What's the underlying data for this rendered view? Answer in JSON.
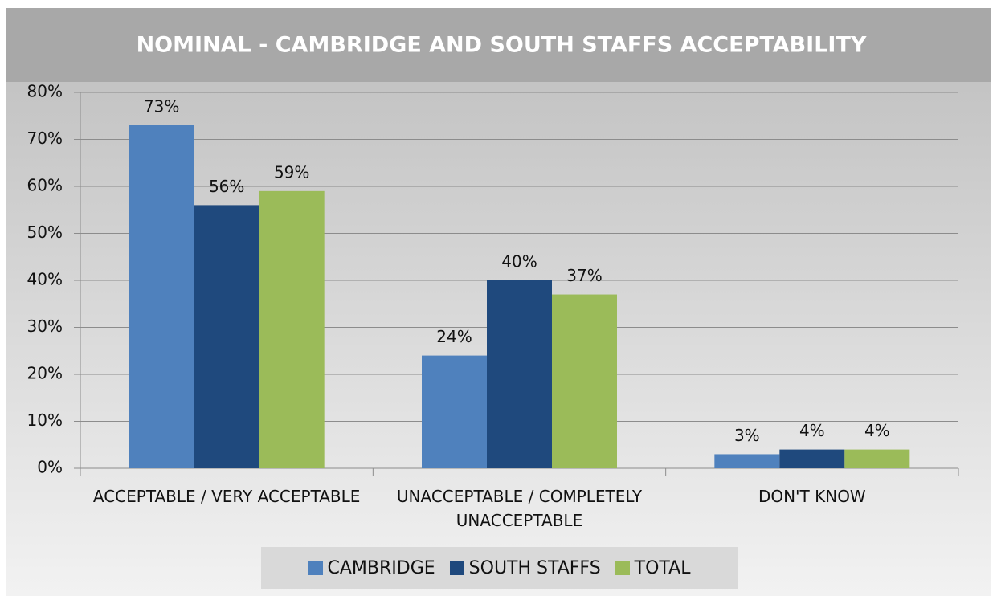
{
  "chart_data": {
    "type": "bar",
    "title": "NOMINAL - CAMBRIDGE AND SOUTH STAFFS ACCEPTABILITY",
    "categories": [
      "ACCEPTABLE / VERY ACCEPTABLE",
      "UNACCEPTABLE / COMPLETELY UNACCEPTABLE",
      "DON'T KNOW"
    ],
    "series": [
      {
        "name": "CAMBRIDGE",
        "color": "#4f81bd",
        "values": [
          73,
          24,
          3
        ],
        "value_labels": [
          "73%",
          "24%",
          "3%"
        ]
      },
      {
        "name": "SOUTH STAFFS",
        "color": "#1f497d",
        "values": [
          56,
          40,
          4
        ],
        "value_labels": [
          "56%",
          "40%",
          "4%"
        ]
      },
      {
        "name": "TOTAL",
        "color": "#9bbb59",
        "values": [
          59,
          37,
          4
        ],
        "value_labels": [
          "59%",
          "37%",
          "4%"
        ]
      }
    ],
    "ylim": [
      0,
      80
    ],
    "yticks": [
      {
        "value": 0,
        "label": "0%"
      },
      {
        "value": 10,
        "label": "10%"
      },
      {
        "value": 20,
        "label": "20%"
      },
      {
        "value": 30,
        "label": "30%"
      },
      {
        "value": 40,
        "label": "40%"
      },
      {
        "value": 50,
        "label": "50%"
      },
      {
        "value": 60,
        "label": "60%"
      },
      {
        "value": 70,
        "label": "70%"
      },
      {
        "value": 80,
        "label": "80%"
      }
    ],
    "grid": true,
    "legend": "bottom"
  }
}
